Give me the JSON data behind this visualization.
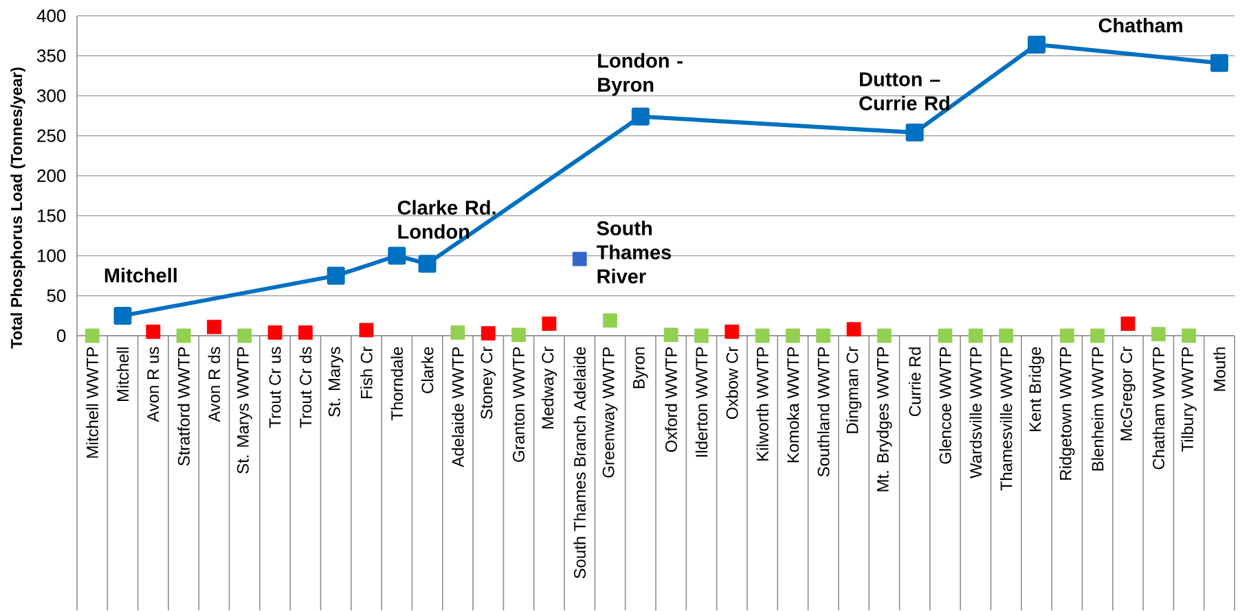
{
  "chart_data": {
    "type": "line",
    "ylabel": "Total Phosphorus Load (Tonnes/year)",
    "categories": [
      "Mitchell WWTP",
      "Mitchell",
      "Avon R us",
      "Stratford WWTP",
      "Avon R ds",
      "St. Marys WWTP",
      "Trout Cr us",
      "Trout Cr ds",
      "St. Marys",
      "Fish Cr",
      "Thorndale",
      "Clarke",
      "Adelaide WWTP",
      "Stoney Cr",
      "Granton WWTP",
      "Medway Cr",
      "South Thames Branch Adelaide",
      "Greenway WWTP",
      "Byron",
      "Oxford WWTP",
      "Ilderton WWTP",
      "Oxbow Cr",
      "Kilworth WWTP",
      "Komoka WWTP",
      "Southland WWTP",
      "Dingman Cr",
      "Mt. Brydges WWTP",
      "Currie Rd",
      "Glencoe WWTP",
      "Wardsville WWTP",
      "Thamesville WWTP",
      "Kent Bridge",
      "Ridgetown WWTP",
      "Blenheim WWTP",
      "McGregor Cr",
      "Chatham WWTP",
      "Tilbury WWTP",
      "Mouth"
    ],
    "series": [
      {
        "type": "line",
        "color": "#0070c0",
        "values": [
          null,
          25,
          null,
          null,
          null,
          null,
          null,
          null,
          75,
          null,
          100,
          90,
          null,
          null,
          null,
          null,
          null,
          null,
          274,
          null,
          null,
          null,
          null,
          null,
          null,
          null,
          null,
          254,
          null,
          null,
          null,
          364,
          null,
          null,
          null,
          null,
          null,
          341
        ]
      },
      {
        "type": "scatter",
        "color": "#ff0000",
        "values": [
          null,
          null,
          5,
          null,
          11,
          null,
          4,
          4,
          null,
          7,
          null,
          null,
          null,
          3,
          null,
          15,
          null,
          null,
          null,
          null,
          null,
          5,
          null,
          null,
          null,
          8,
          null,
          null,
          null,
          null,
          null,
          null,
          null,
          null,
          15,
          null,
          null,
          null
        ]
      },
      {
        "type": "scatter",
        "color": "#92d050",
        "values": [
          0,
          null,
          null,
          0,
          null,
          0,
          null,
          null,
          null,
          null,
          null,
          null,
          4,
          null,
          1,
          null,
          null,
          19,
          null,
          1,
          0,
          null,
          0,
          0,
          0,
          null,
          0,
          null,
          0,
          0,
          0,
          null,
          0,
          0,
          null,
          2,
          0,
          null
        ]
      },
      {
        "type": "scatter",
        "color": "#3366cc",
        "values": [
          null,
          null,
          null,
          null,
          null,
          null,
          null,
          null,
          null,
          null,
          null,
          null,
          null,
          null,
          null,
          null,
          96,
          null,
          null,
          null,
          null,
          null,
          null,
          null,
          null,
          null,
          null,
          null,
          null,
          null,
          null,
          null,
          null,
          null,
          null,
          null,
          null,
          null
        ]
      }
    ],
    "ylim": [
      0,
      400
    ],
    "yticks": [
      0,
      50,
      100,
      150,
      200,
      250,
      300,
      350,
      400
    ],
    "grid": "y",
    "marker": "square",
    "annotations": [
      {
        "text": "Mitchell",
        "x": "Mitchell",
        "y": 25
      },
      {
        "text": "Clarke Rd. London",
        "x": "Clarke",
        "y": 90
      },
      {
        "text": "London -Byron",
        "x": "Byron",
        "y": 274
      },
      {
        "text": "Dutton – Currie Rd",
        "x": "Currie Rd",
        "y": 254
      },
      {
        "text": "Chatham",
        "x": "Mouth",
        "y": 341
      },
      {
        "text": "South Thames River",
        "x": "South Thames Branch Adelaide",
        "y": 96
      }
    ]
  }
}
